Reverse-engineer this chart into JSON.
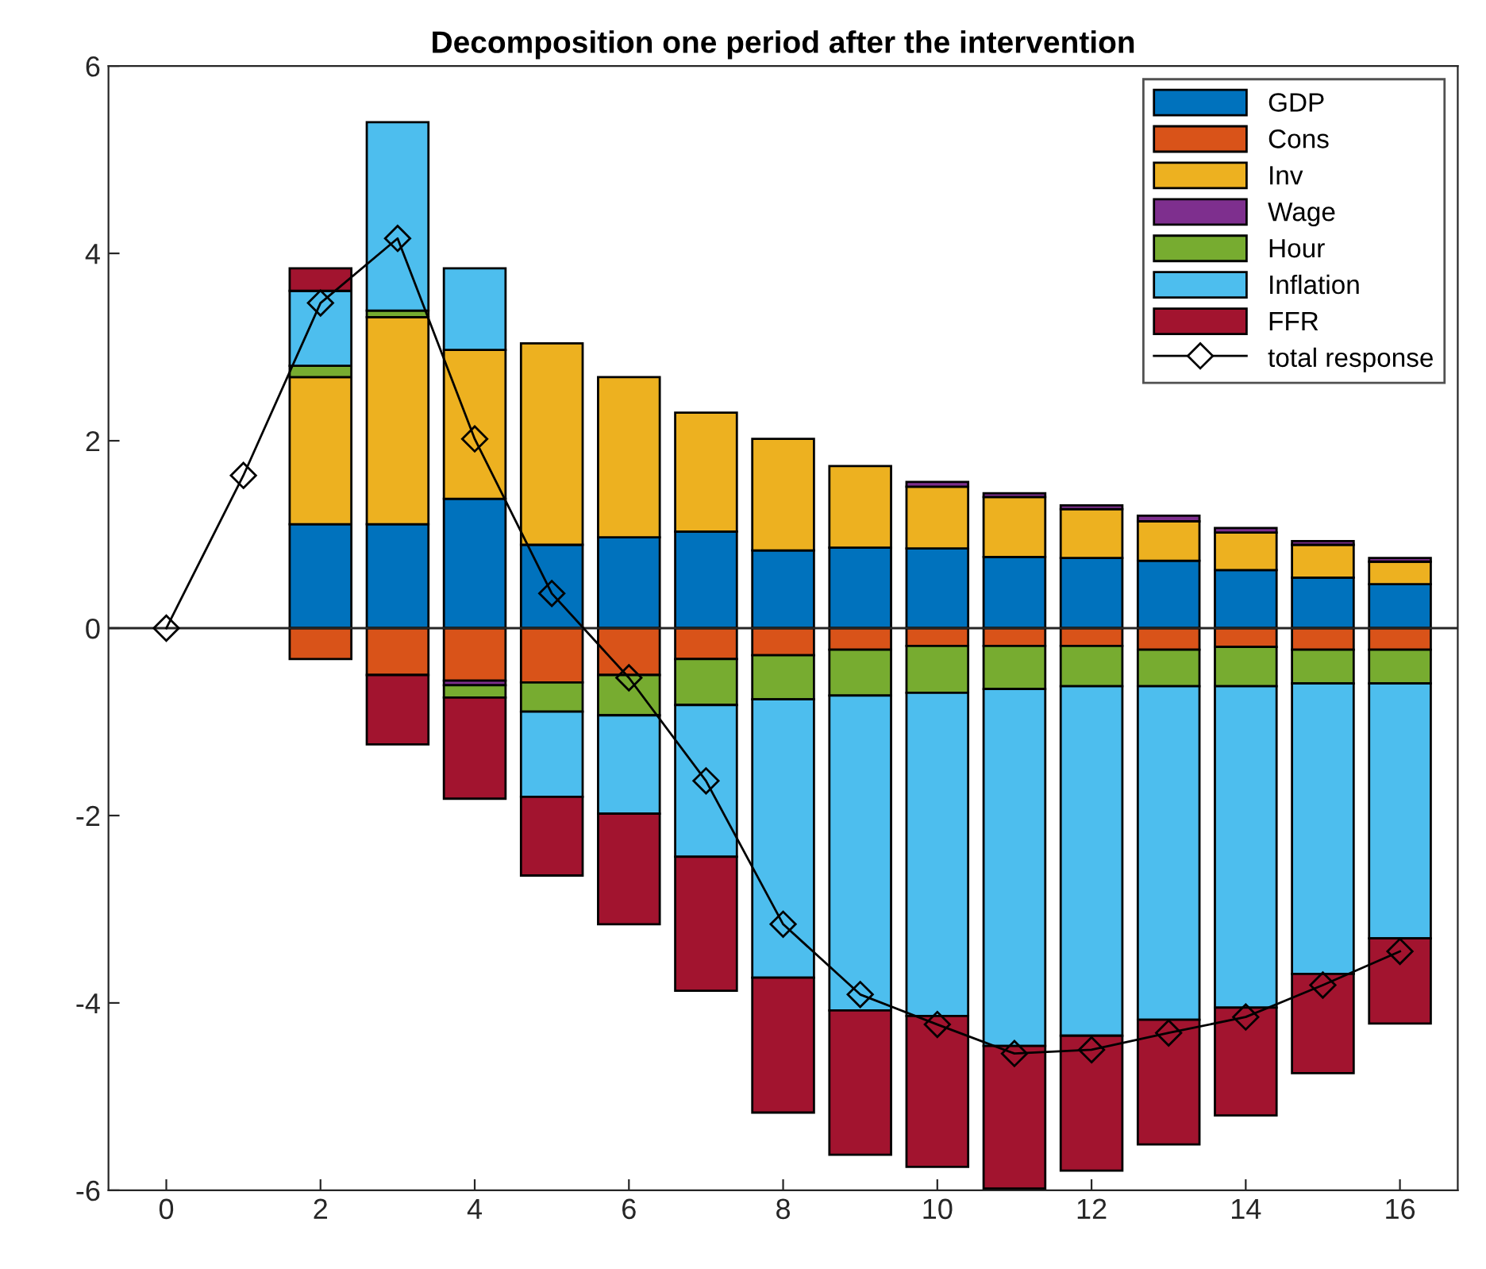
{
  "chart_data": {
    "type": "bar",
    "title": "Decomposition one period after the intervention",
    "stacked": true,
    "x": [
      0,
      1,
      2,
      3,
      4,
      5,
      6,
      7,
      8,
      9,
      10,
      11,
      12,
      13,
      14,
      15,
      16
    ],
    "xlim": [
      -0.75,
      16.75
    ],
    "xticks": [
      0,
      2,
      4,
      6,
      8,
      10,
      12,
      14,
      16
    ],
    "ylim": [
      -6,
      6
    ],
    "yticks": [
      -6,
      -4,
      -2,
      0,
      2,
      4,
      6
    ],
    "series": [
      {
        "name": "GDP",
        "color": "#0072bd",
        "values": [
          null,
          null,
          1.11,
          1.11,
          1.38,
          0.89,
          0.97,
          1.03,
          0.83,
          0.86,
          0.85,
          0.76,
          0.75,
          0.72,
          0.62,
          0.54,
          0.47
        ]
      },
      {
        "name": "Cons",
        "color": "#d95319",
        "values": [
          null,
          null,
          -0.33,
          -0.5,
          -0.56,
          -0.58,
          -0.5,
          -0.33,
          -0.29,
          -0.23,
          -0.19,
          -0.19,
          -0.19,
          -0.23,
          -0.2,
          -0.23,
          -0.23
        ]
      },
      {
        "name": "Inv",
        "color": "#edb120",
        "values": [
          null,
          null,
          1.57,
          2.21,
          1.59,
          2.15,
          1.71,
          1.27,
          1.19,
          0.87,
          0.66,
          0.64,
          0.52,
          0.42,
          0.4,
          0.35,
          0.24
        ]
      },
      {
        "name": "Wage",
        "color": "#7e2f8e",
        "values": [
          null,
          null,
          null,
          null,
          -0.05,
          null,
          null,
          null,
          null,
          null,
          0.05,
          0.04,
          0.04,
          0.06,
          0.05,
          0.04,
          0.04
        ]
      },
      {
        "name": "Hour",
        "color": "#77ac30",
        "values": [
          null,
          null,
          0.12,
          0.07,
          -0.13,
          -0.31,
          -0.43,
          -0.49,
          -0.47,
          -0.49,
          -0.5,
          -0.46,
          -0.43,
          -0.39,
          -0.42,
          -0.36,
          -0.36
        ]
      },
      {
        "name": "Inflation",
        "color": "#4dbeee",
        "values": [
          null,
          null,
          0.8,
          2.01,
          0.87,
          -0.91,
          -1.05,
          -1.62,
          -2.97,
          -3.36,
          -3.45,
          -3.81,
          -3.73,
          -3.56,
          -3.43,
          -3.1,
          -2.72
        ]
      },
      {
        "name": "FFR",
        "color": "#a2142f",
        "values": [
          null,
          null,
          0.24,
          -0.74,
          -1.08,
          -0.84,
          -1.18,
          -1.43,
          -1.44,
          -1.54,
          -1.61,
          -1.52,
          -1.44,
          -1.33,
          -1.15,
          -1.06,
          -0.91
        ]
      },
      {
        "name": "total response",
        "type": "line",
        "color": "#000000",
        "marker": "diamond",
        "values": [
          0,
          1.63,
          3.47,
          4.16,
          2.02,
          0.37,
          -0.53,
          -1.63,
          -3.16,
          -3.91,
          -4.23,
          -4.54,
          -4.5,
          -4.32,
          -4.15,
          -3.81,
          -3.45
        ]
      }
    ],
    "ref_lines": [
      {
        "axis": "y",
        "value": 0,
        "color": "#262626"
      }
    ],
    "legend": "top right",
    "grid": false
  }
}
